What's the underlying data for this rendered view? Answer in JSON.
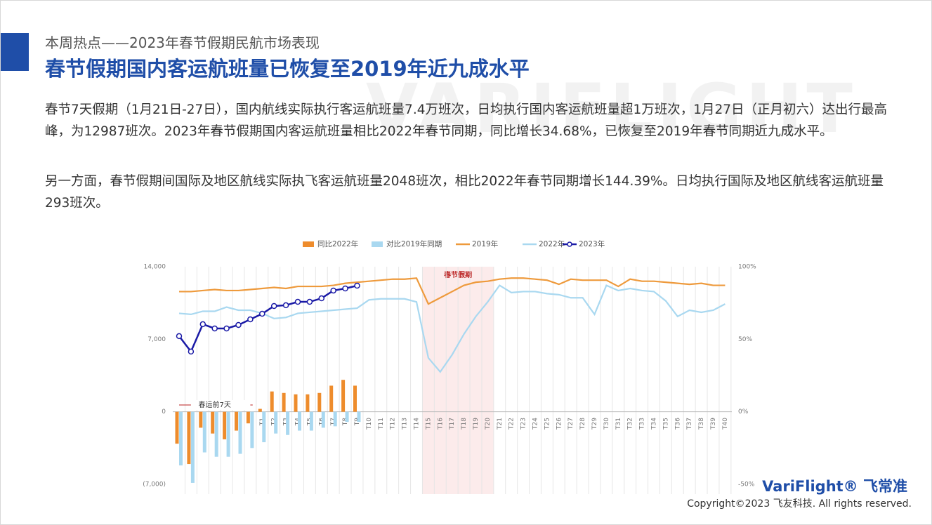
{
  "header": {
    "subtitle": "本周热点——2023年春节假期民航市场表现",
    "title": "春节假期国内客运航班量已恢复至2019年近九成水平"
  },
  "watermark": "VARIFLIGHT",
  "paragraphs": [
    "春节7天假期（1月21日-27日），国内航线实际执行客运航班量7.4万班次，日均执行国内客运航班量超1万班次，1月27日（正月初六）达出行最高峰，为12987班次。2023年春节假期国内客运航班量相比2022年春节同期，同比增长34.68%，已恢复至2019年春节同期近九成水平。",
    "另一方面，春节假期间国际及地区航线实际执飞客运航班量2048班次，相比2022年春节同期增长144.39%。日均执行国际及地区航线客运航班量293班次。"
  ],
  "chart_data": {
    "type": "combo",
    "annotations": {
      "holiday": "春节假期",
      "pre_travel": "春运前7天"
    },
    "categories": [
      null,
      null,
      null,
      null,
      null,
      null,
      null,
      "T1",
      "T2",
      "T3",
      "T4",
      "T5",
      "T6",
      "T7",
      "T8",
      "T9",
      "T10",
      "T11",
      "T12",
      "T13",
      "T14",
      "T15",
      "T16",
      "T17",
      "T18",
      "T19",
      "T20",
      "T21",
      "T22",
      "T23",
      "T24",
      "T25",
      "T26",
      "T27",
      "T28",
      "T29",
      "T30",
      "T31",
      "T32",
      "T33",
      "T34",
      "T35",
      "T36",
      "T37",
      "T38",
      "T39",
      "T40"
    ],
    "ylim": [
      -7000,
      14000
    ],
    "yticks": [
      {
        "value": -7000,
        "label": "(7,000)"
      },
      0,
      {
        "value": 7000,
        "label": "7,000"
      },
      {
        "value": 14000,
        "label": "14,000"
      }
    ],
    "y2lim": [
      -50,
      100
    ],
    "y2ticks": [
      {
        "value": -50,
        "label": "-50%"
      },
      {
        "value": 0,
        "label": "0%"
      },
      {
        "value": 50,
        "label": "50%"
      },
      {
        "value": 100,
        "label": "100%"
      }
    ],
    "series": [
      {
        "name": "同比2022年",
        "type": "bar",
        "axis": "y2",
        "color": "#ee8c2c",
        "values": [
          -22,
          -36,
          -11,
          -15,
          -19,
          -13,
          -8,
          2,
          14,
          13,
          12,
          12,
          13,
          18,
          22,
          18,
          null,
          null,
          null,
          null,
          null,
          null,
          null,
          null,
          null,
          null,
          null,
          null,
          null,
          null,
          null,
          null,
          null,
          null,
          null,
          null,
          null,
          null,
          null,
          null,
          null,
          null,
          null,
          null,
          null,
          null,
          null
        ]
      },
      {
        "name": "对比2019年同期",
        "type": "bar",
        "axis": "y2",
        "color": "#a9d8f0",
        "values": [
          -37,
          -49,
          -28,
          -31,
          -31,
          -29,
          -25,
          -21,
          -15,
          -16,
          -13,
          -13,
          -11,
          -10,
          -7,
          -7,
          null,
          null,
          null,
          null,
          null,
          null,
          null,
          null,
          null,
          null,
          null,
          null,
          null,
          null,
          null,
          null,
          null,
          null,
          null,
          null,
          null,
          null,
          null,
          null,
          null,
          null,
          null,
          null,
          null,
          null,
          null
        ]
      },
      {
        "name": "2019年",
        "type": "line",
        "color": "#ee9a3c",
        "values": [
          11600,
          11600,
          11700,
          11800,
          11700,
          11700,
          11800,
          11900,
          12000,
          11900,
          12100,
          12100,
          12100,
          12200,
          12400,
          12500,
          12600,
          12700,
          12800,
          12800,
          12900,
          10400,
          11000,
          11600,
          12200,
          12500,
          12600,
          12800,
          12900,
          12900,
          12800,
          12700,
          12300,
          12800,
          12700,
          12700,
          12700,
          12100,
          12800,
          12600,
          12600,
          12500,
          12400,
          12300,
          12400,
          12200,
          12200
        ]
      },
      {
        "name": "2022年",
        "type": "line",
        "color": "#a9d8f0",
        "values": [
          9500,
          9400,
          9700,
          9700,
          10100,
          9800,
          9800,
          9500,
          9000,
          9100,
          9500,
          9600,
          9700,
          9800,
          9900,
          10000,
          10800,
          10900,
          10900,
          10900,
          10600,
          5200,
          3850,
          5500,
          7500,
          9200,
          10600,
          12200,
          11500,
          11600,
          11600,
          11400,
          11300,
          11000,
          11000,
          9400,
          12200,
          11700,
          11900,
          11700,
          11600,
          10700,
          9200,
          9800,
          9600,
          9800,
          10400
        ]
      },
      {
        "name": "2023年",
        "type": "line",
        "marker": true,
        "color": "#1a1aa6",
        "values": [
          7300,
          5810,
          8450,
          8040,
          8040,
          8380,
          8920,
          9460,
          10210,
          10280,
          10610,
          10610,
          10950,
          11700,
          11900,
          12170,
          null,
          null,
          null,
          null,
          null,
          null,
          null,
          null,
          null,
          null,
          null,
          null,
          null,
          null,
          null,
          null,
          null,
          null,
          null,
          null,
          null,
          null,
          null,
          null,
          null,
          null,
          null,
          null,
          null,
          null,
          null
        ]
      }
    ]
  },
  "footer": {
    "logo": "VariFlight®",
    "logo_cn": "飞常准",
    "copyright": "Copyright©2023 飞友科技. All rights reserved."
  }
}
